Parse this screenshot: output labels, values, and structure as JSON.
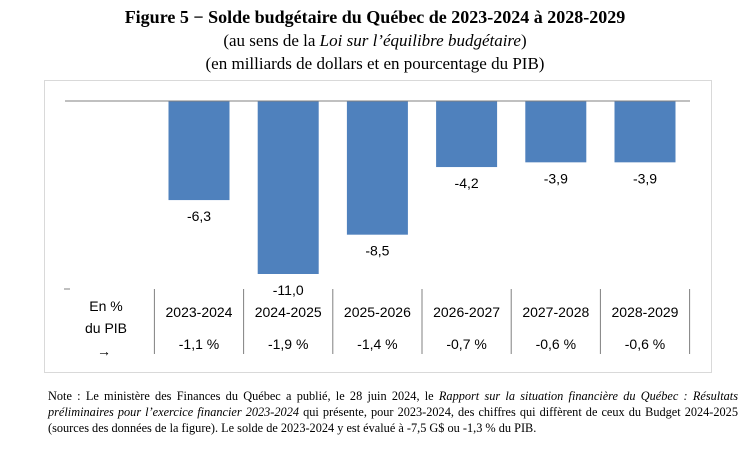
{
  "figure": {
    "title": "Figure 5 − Solde budgétaire du Québec de 2023-2024 à 2028-2029",
    "subtitle_prefix": "(au sens de la ",
    "subtitle_italic": "Loi sur l’équilibre budgétaire",
    "subtitle_suffix": ")",
    "subtitle2": "(en milliards de dollars et en pourcentage du PIB)"
  },
  "chart_data": {
    "type": "bar",
    "categories": [
      "2023-2024",
      "2024-2025",
      "2025-2026",
      "2026-2027",
      "2027-2028",
      "2028-2029"
    ],
    "values": [
      -6.3,
      -11.0,
      -8.5,
      -4.2,
      -3.9,
      -3.9
    ],
    "value_labels": [
      "-6,3",
      "-11,0",
      "-8,5",
      "-4,2",
      "-3,9",
      "-3,9"
    ],
    "pct_gdp_labels": [
      "-1,1 %",
      "-1,9 %",
      "-1,4 %",
      "-0,7 %",
      "-0,6 %",
      "-0,6 %"
    ],
    "row_header": [
      "En %",
      "du PIB",
      "→"
    ],
    "ylim": [
      -11.0,
      0
    ],
    "bar_color": "#4f81bd",
    "grid": false,
    "legend": "none"
  },
  "note": {
    "p1": "Note : Le ministère des Finances du Québec a publié, le 28 juin 2024, le ",
    "i1": "Rapport sur la situation financière du Québec : Résultats préliminaires pour l’exercice financier 2023-2024",
    "p2": " qui présente, pour 2023-2024, des chiffres qui diffèrent de ceux du Budget 2024-2025 (sources des données de la figure). Le solde de 2023-2024 y est évalué à -7,5 G$ ou -1,3 % du PIB."
  }
}
